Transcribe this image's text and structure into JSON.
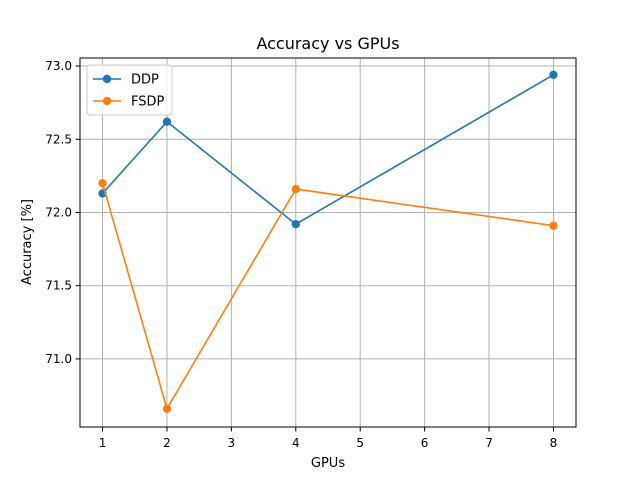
{
  "chart_data": {
    "type": "line",
    "title": "Accuracy vs GPUs",
    "xlabel": "GPUs",
    "ylabel": "Accuracy [%]",
    "xlim": [
      0.65,
      8.35
    ],
    "ylim": [
      70.535,
      73.055
    ],
    "xticks": [
      1,
      2,
      3,
      4,
      5,
      6,
      7,
      8
    ],
    "xtick_labels": [
      "1",
      "2",
      "3",
      "4",
      "5",
      "6",
      "7",
      "8"
    ],
    "yticks": [
      71.0,
      71.5,
      72.0,
      72.5,
      73.0
    ],
    "ytick_labels": [
      "71.0",
      "71.5",
      "72.0",
      "72.5",
      "73.0"
    ],
    "grid": true,
    "legend_position": "top-left",
    "series": [
      {
        "name": "DDP",
        "color": "#1f77b4",
        "marker": "circle",
        "x": [
          1,
          2,
          4,
          8
        ],
        "y": [
          72.13,
          72.62,
          71.92,
          72.94
        ]
      },
      {
        "name": "FSDP",
        "color": "#ff7f0e",
        "marker": "circle",
        "x": [
          1,
          2,
          4,
          8
        ],
        "y": [
          72.2,
          70.66,
          72.16,
          71.91
        ]
      }
    ]
  }
}
